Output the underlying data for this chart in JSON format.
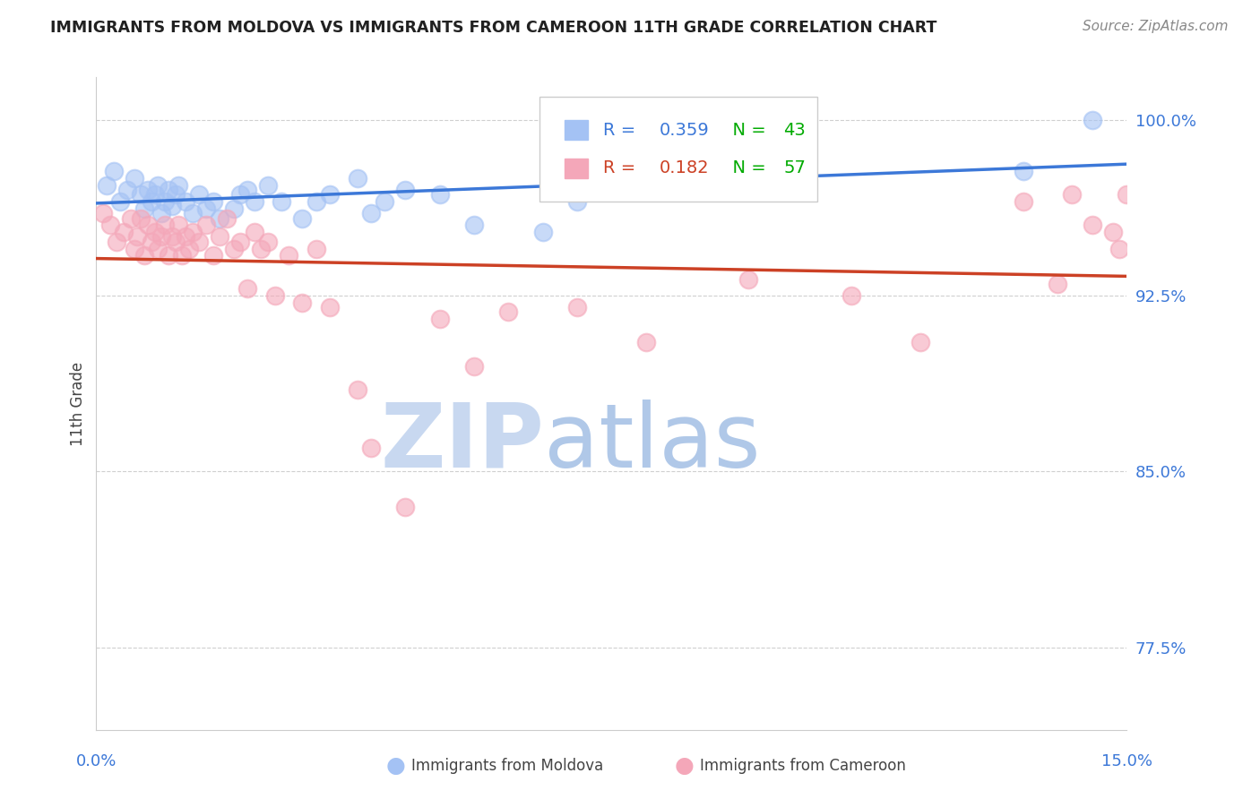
{
  "title": "IMMIGRANTS FROM MOLDOVA VS IMMIGRANTS FROM CAMEROON 11TH GRADE CORRELATION CHART",
  "source": "Source: ZipAtlas.com",
  "ylabel": "11th Grade",
  "y_ticks": [
    77.5,
    85.0,
    92.5,
    100.0
  ],
  "y_tick_labels": [
    "77.5%",
    "85.0%",
    "92.5%",
    "100.0%"
  ],
  "x_min": 0.0,
  "x_max": 15.0,
  "y_min": 74.0,
  "y_max": 101.8,
  "moldova_color": "#a4c2f4",
  "cameroon_color": "#f4a7b9",
  "moldova_line_color": "#3c78d8",
  "cameroon_line_color": "#cc4125",
  "moldova_R": 0.359,
  "moldova_N": 43,
  "cameroon_R": 0.182,
  "cameroon_N": 57,
  "moldova_scatter_x": [
    0.15,
    0.25,
    0.35,
    0.45,
    0.55,
    0.65,
    0.7,
    0.75,
    0.8,
    0.85,
    0.9,
    0.95,
    1.0,
    1.05,
    1.1,
    1.15,
    1.2,
    1.3,
    1.4,
    1.5,
    1.6,
    1.7,
    1.8,
    2.0,
    2.1,
    2.2,
    2.3,
    2.5,
    2.7,
    3.0,
    3.2,
    3.4,
    3.8,
    4.0,
    4.2,
    4.5,
    5.0,
    5.5,
    6.5,
    7.0,
    9.0,
    13.5,
    14.5
  ],
  "moldova_scatter_y": [
    97.2,
    97.8,
    96.5,
    97.0,
    97.5,
    96.8,
    96.2,
    97.0,
    96.5,
    96.8,
    97.2,
    96.0,
    96.5,
    97.0,
    96.3,
    96.8,
    97.2,
    96.5,
    96.0,
    96.8,
    96.2,
    96.5,
    95.8,
    96.2,
    96.8,
    97.0,
    96.5,
    97.2,
    96.5,
    95.8,
    96.5,
    96.8,
    97.5,
    96.0,
    96.5,
    97.0,
    96.8,
    95.5,
    95.2,
    96.5,
    98.2,
    97.8,
    100.0
  ],
  "cameroon_scatter_x": [
    0.1,
    0.2,
    0.3,
    0.4,
    0.5,
    0.55,
    0.6,
    0.65,
    0.7,
    0.75,
    0.8,
    0.85,
    0.9,
    0.95,
    1.0,
    1.05,
    1.1,
    1.15,
    1.2,
    1.25,
    1.3,
    1.35,
    1.4,
    1.5,
    1.6,
    1.7,
    1.8,
    1.9,
    2.0,
    2.1,
    2.2,
    2.3,
    2.4,
    2.5,
    2.6,
    2.8,
    3.0,
    3.2,
    3.4,
    3.8,
    4.0,
    4.5,
    5.0,
    5.5,
    6.0,
    7.0,
    8.0,
    9.5,
    11.0,
    12.0,
    13.5,
    14.0,
    14.2,
    14.5,
    14.8,
    14.9,
    15.0
  ],
  "cameroon_scatter_y": [
    96.0,
    95.5,
    94.8,
    95.2,
    95.8,
    94.5,
    95.0,
    95.8,
    94.2,
    95.5,
    94.8,
    95.2,
    94.5,
    95.0,
    95.5,
    94.2,
    95.0,
    94.8,
    95.5,
    94.2,
    95.0,
    94.5,
    95.2,
    94.8,
    95.5,
    94.2,
    95.0,
    95.8,
    94.5,
    94.8,
    92.8,
    95.2,
    94.5,
    94.8,
    92.5,
    94.2,
    92.2,
    94.5,
    92.0,
    88.5,
    86.0,
    83.5,
    91.5,
    89.5,
    91.8,
    92.0,
    90.5,
    93.2,
    92.5,
    90.5,
    96.5,
    93.0,
    96.8,
    95.5,
    95.2,
    94.5,
    96.8
  ],
  "background_color": "#ffffff",
  "grid_color": "#d0d0d0",
  "title_color": "#212121",
  "axis_label_color": "#3c78d8",
  "watermark_zip_color": "#c9daf8",
  "watermark_atlas_color": "#a0c0e8"
}
